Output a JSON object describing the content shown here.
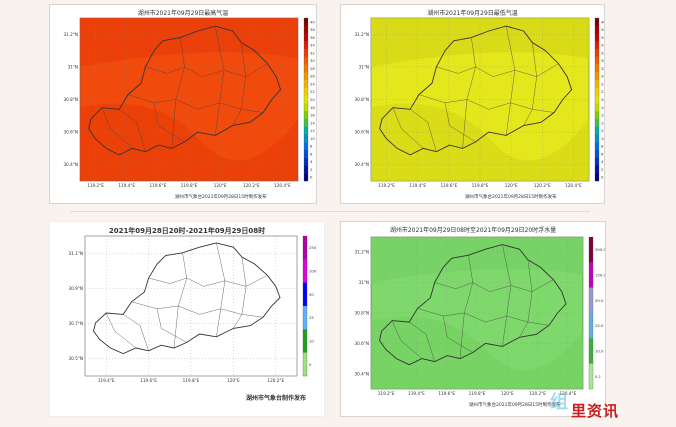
{
  "panels": [
    {
      "id": "max-temp",
      "title": "湖州市2021年09月29日最高气温",
      "credit": "湖州市气象台2021年09月28日15时制作发布",
      "fill_color": "#f04a0c",
      "band_color": "#e83a08",
      "lat_labels": [
        "31.2°N",
        "31°N",
        "30.8°N",
        "30.6°N",
        "30.4°N"
      ],
      "lon_labels": [
        "119.2°E",
        "119.4°E",
        "119.6°E",
        "119.8°E",
        "120°E",
        "120.2°E",
        "120.4°E"
      ]
    },
    {
      "id": "min-temp",
      "title": "湖州市2021年09月29日最低气温",
      "credit": "湖州市气象台2021年09月28日15时制作发布",
      "fill_color": "#e3e71c",
      "band_color": "#d4d416",
      "lat_labels": [
        "31.2°N",
        "31°N",
        "30.8°N",
        "30.6°N",
        "30.4°N"
      ],
      "lon_labels": [
        "119.2°E",
        "119.4°E",
        "119.6°E",
        "119.8°E",
        "120°E",
        "120.2°E",
        "120.4°E"
      ]
    },
    {
      "id": "rainfall",
      "title": "2021年09月28日20时-2021年09月29日08时",
      "credit": "湖州市气象台制作发布",
      "fill_color": "#ffffff",
      "band_color": "#ffffff",
      "lat_labels": [
        "31.1°N",
        "30.9°N",
        "30.7°N",
        "30.5°N"
      ],
      "lon_labels": [
        "119.4°E",
        "119.6°E",
        "119.8°E",
        "120°E",
        "120.2°E"
      ]
    },
    {
      "id": "wind",
      "title": "湖州市2021年09月29日08时至2021年09月29日20时浮水量",
      "credit": "湖州市气象台2021年09月28日15时制作发布",
      "fill_color": "#7fd86c",
      "band_color": "#72d060",
      "lat_labels": [
        "31.2°N",
        "31°N",
        "30.8°N",
        "30.6°N",
        "30.4°N"
      ],
      "lon_labels": [
        "119.2°E",
        "119.4°E",
        "119.6°E",
        "119.8°E",
        "120°E",
        "120.2°E",
        "120.4°E"
      ]
    }
  ],
  "colorbars": {
    "max-temp": {
      "labels": [
        "40",
        "38",
        "36",
        "34",
        "32",
        "30",
        "28",
        "26",
        "24",
        "22",
        "20",
        "18",
        "16",
        "14",
        "12",
        "10",
        "8",
        "6",
        "4",
        "2",
        "0"
      ],
      "colors": [
        "#7a0000",
        "#a30000",
        "#c80000",
        "#e31b00",
        "#f03c00",
        "#f25a00",
        "#f47800",
        "#f59600",
        "#f6b200",
        "#f5cd00",
        "#e4e400",
        "#b8e000",
        "#7fd000",
        "#3fc04f",
        "#00b0a0",
        "#0090d0",
        "#0070e0",
        "#0050e0",
        "#0030c0",
        "#0010a0",
        "#000080"
      ]
    },
    "min-temp": {
      "labels": [
        "40",
        "38",
        "36",
        "34",
        "32",
        "30",
        "28",
        "26",
        "24",
        "22",
        "20",
        "18",
        "16",
        "14",
        "12",
        "10",
        "8",
        "6",
        "4",
        "2",
        "0"
      ],
      "colors": [
        "#7a0000",
        "#a30000",
        "#c80000",
        "#e31b00",
        "#f03c00",
        "#f25a00",
        "#f47800",
        "#f59600",
        "#f6b200",
        "#f5cd00",
        "#e4e400",
        "#b8e000",
        "#7fd000",
        "#3fc04f",
        "#00b0a0",
        "#0090d0",
        "#0070e0",
        "#0050e0",
        "#0030c0",
        "#0010a0",
        "#000080"
      ]
    },
    "rainfall": {
      "labels": [
        "250",
        "100",
        "50",
        "25",
        "10",
        "0"
      ],
      "colors": [
        "#b000b0",
        "#e000e0",
        "#0000ff",
        "#60b0ff",
        "#20a020",
        "#a0e080"
      ]
    },
    "wind": {
      "labels": [
        "300.0",
        "150.0",
        "50.0",
        "25.0",
        "10.0",
        "0.1"
      ],
      "colors": [
        "#800040",
        "#c000c0",
        "#9a9ad0",
        "#60b0e0",
        "#3ab03a",
        "#a8e890"
      ]
    }
  },
  "watermark": {
    "left": "组",
    "right": "里资讯"
  }
}
